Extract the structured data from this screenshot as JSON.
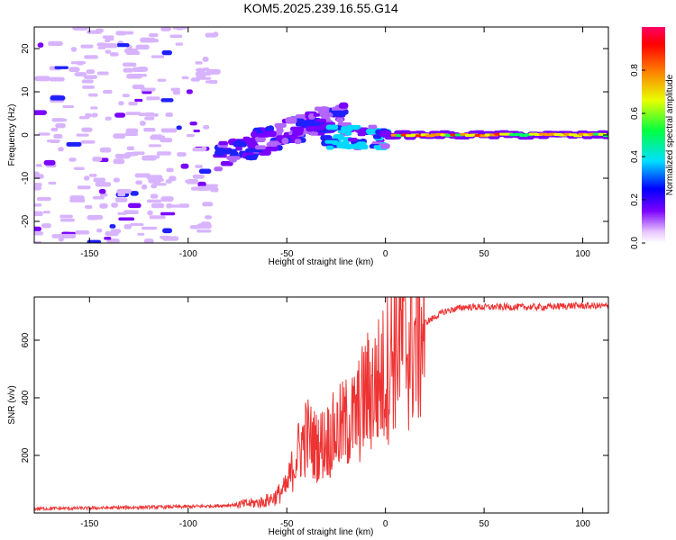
{
  "title": "KOM5.2025.239.16.55.G14",
  "chart_data": [
    {
      "type": "heatmap",
      "name": "spectrogram",
      "xlabel": "Height of straight line (km)",
      "ylabel": "Frequency (Hz)",
      "xlim": [
        -178,
        113
      ],
      "ylim": [
        -25,
        25
      ],
      "xticks": [
        -150,
        -100,
        -50,
        0,
        50,
        100
      ],
      "yticks": [
        -20,
        -10,
        0,
        10,
        20
      ],
      "colorbar": {
        "label": "Normalized spectral amplitude",
        "range": [
          0,
          1
        ],
        "ticks": [
          0.0,
          0.2,
          0.4,
          0.6,
          0.8
        ]
      },
      "features": [
        {
          "x": [
            -178,
            -85
          ],
          "y": [
            -25,
            25
          ],
          "amplitude": 0.05,
          "description": "scattered noise"
        },
        {
          "x": [
            -85,
            -20
          ],
          "y": [
            -5,
            8
          ],
          "amplitude": 0.2,
          "description": "rising signal track"
        },
        {
          "x": [
            -30,
            0
          ],
          "y": [
            -3,
            2
          ],
          "amplitude": 0.3
        },
        {
          "x": [
            0,
            113
          ],
          "y": [
            -1,
            1
          ],
          "amplitude": 0.7,
          "description": "steady carrier near 0 Hz"
        }
      ]
    },
    {
      "type": "line",
      "name": "snr",
      "xlabel": "Height of straight line (km)",
      "ylabel": "SNR (v/v)",
      "xlim": [
        -178,
        113
      ],
      "ylim": [
        0,
        750
      ],
      "xticks": [
        -150,
        -100,
        -50,
        0,
        50,
        100
      ],
      "yticks": [
        200,
        400,
        600
      ],
      "series": [
        {
          "name": "SNR",
          "color": "#ee3333",
          "x": [
            -178,
            -160,
            -140,
            -120,
            -100,
            -85,
            -78,
            -70,
            -62,
            -56,
            -50,
            -45,
            -40,
            -35,
            -30,
            -25,
            -20,
            -15,
            -10,
            -5,
            0,
            3,
            6,
            10,
            15,
            20,
            25,
            30,
            40,
            60,
            80,
            95,
            113
          ],
          "values": [
            15,
            16,
            18,
            20,
            22,
            25,
            28,
            32,
            38,
            55,
            90,
            200,
            270,
            230,
            250,
            280,
            310,
            330,
            410,
            440,
            480,
            560,
            620,
            580,
            600,
            660,
            680,
            700,
            715,
            715,
            715,
            720,
            718
          ]
        }
      ]
    }
  ]
}
